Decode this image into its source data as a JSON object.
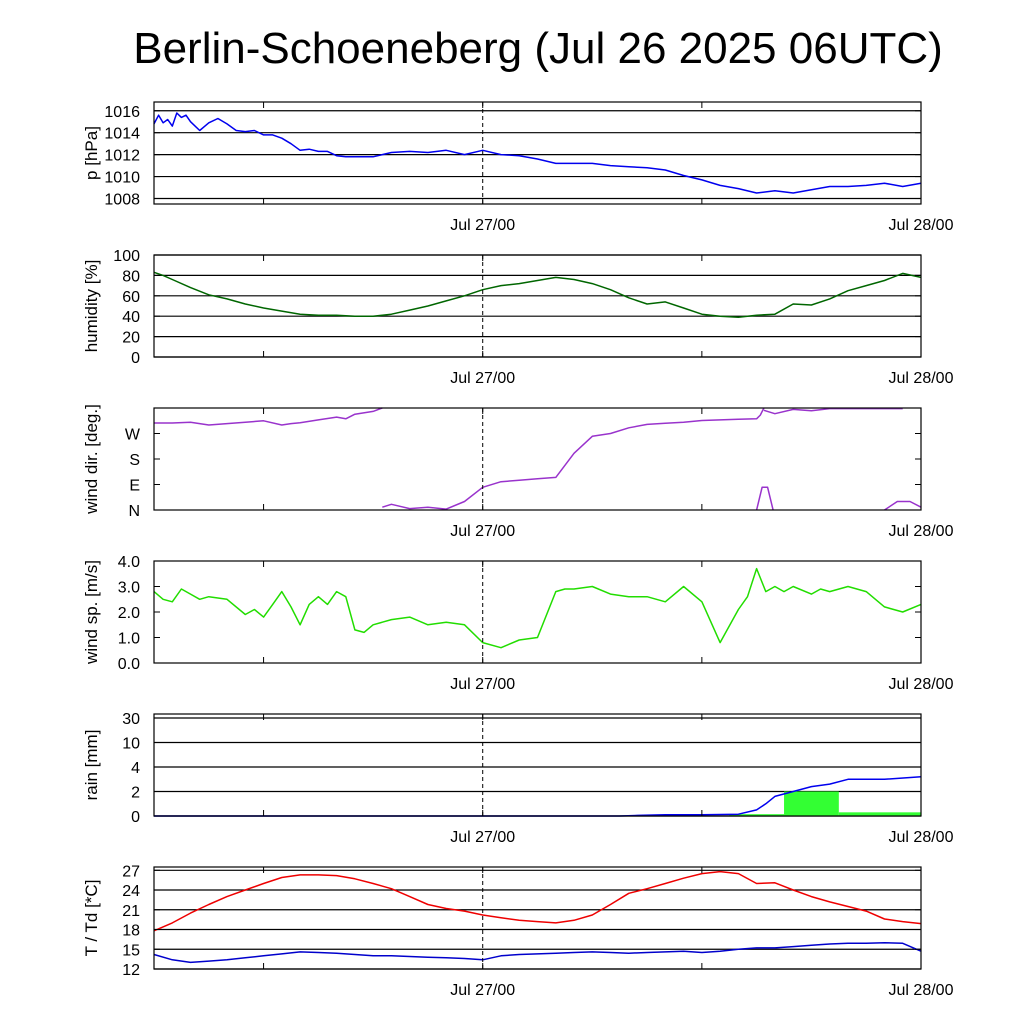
{
  "title": "Berlin-Schoeneberg (Jul 26 2025 06UTC)",
  "x_tick_labels": [
    "Jul 27/00",
    "Jul 28/00"
  ],
  "x_range_hours": [
    0,
    42
  ],
  "x_major_ticks_hours": [
    18,
    42
  ],
  "x_minor_ticks_hours": [
    6,
    30
  ],
  "chart_data": [
    {
      "type": "line",
      "ylabel": "p [hPa]",
      "ylim": [
        1007.5,
        1016.8
      ],
      "yticks": [
        1008,
        1010,
        1012,
        1014,
        1016
      ],
      "ytick_labels": [
        "1008",
        "1010",
        "1012",
        "1014",
        "1016"
      ],
      "grid": true,
      "series": [
        {
          "color": "#0000ee",
          "x": [
            0,
            0.25,
            0.5,
            0.75,
            1.0,
            1.25,
            1.5,
            1.75,
            2.0,
            2.5,
            3.0,
            3.5,
            4.0,
            4.5,
            5.0,
            5.5,
            6.0,
            6.5,
            7.0,
            7.5,
            8.0,
            8.5,
            9.0,
            9.5,
            10.0,
            10.5,
            11.0,
            12.0,
            13.0,
            14.0,
            15.0,
            16.0,
            17.0,
            18.0,
            19.0,
            20.0,
            21.0,
            22.0,
            23.0,
            24.0,
            25.0,
            26.0,
            27.0,
            28.0,
            29.0,
            30.0,
            31.0,
            32.0,
            33.0,
            34.0,
            35.0,
            36.0,
            37.0,
            38.0,
            39.0,
            40.0,
            41.0,
            42.0
          ],
          "y": [
            1014.8,
            1015.6,
            1014.9,
            1015.2,
            1014.6,
            1015.8,
            1015.4,
            1015.6,
            1015.0,
            1014.2,
            1014.9,
            1015.3,
            1014.8,
            1014.2,
            1014.1,
            1014.2,
            1013.8,
            1013.8,
            1013.5,
            1013.0,
            1012.4,
            1012.5,
            1012.3,
            1012.3,
            1011.9,
            1011.8,
            1011.8,
            1011.8,
            1012.2,
            1012.3,
            1012.2,
            1012.4,
            1012.0,
            1012.4,
            1012.0,
            1011.9,
            1011.6,
            1011.2,
            1011.2,
            1011.2,
            1011.0,
            1010.9,
            1010.8,
            1010.6,
            1010.1,
            1009.7,
            1009.2,
            1008.9,
            1008.5,
            1008.7,
            1008.5,
            1008.8,
            1009.1,
            1009.1,
            1009.2,
            1009.4,
            1009.1,
            1009.4
          ]
        }
      ]
    },
    {
      "type": "line",
      "ylabel": "humidity [%]",
      "ylim": [
        0,
        100
      ],
      "yticks": [
        0,
        20,
        40,
        60,
        80,
        100
      ],
      "ytick_labels": [
        "0",
        "20",
        "40",
        "60",
        "80",
        "100"
      ],
      "grid": true,
      "series": [
        {
          "color": "#006600",
          "x": [
            0,
            0.5,
            1,
            2,
            3,
            4,
            5,
            6,
            7,
            8,
            9,
            10,
            11,
            12,
            13,
            14,
            15,
            16,
            17,
            18,
            19,
            20,
            21,
            22,
            23,
            24,
            25,
            26,
            27,
            28,
            29,
            30,
            31,
            32,
            33,
            34,
            35,
            36,
            37,
            38,
            39,
            40,
            41,
            42
          ],
          "y": [
            83,
            80,
            76,
            68,
            61,
            57,
            52,
            48,
            45,
            42,
            41,
            41,
            40,
            40,
            42,
            46,
            50,
            55,
            60,
            66,
            70,
            72,
            75,
            78,
            76,
            72,
            66,
            58,
            52,
            54,
            48,
            42,
            40,
            39,
            41,
            42,
            52,
            51,
            57,
            65,
            70,
            75,
            82,
            78
          ]
        }
      ]
    },
    {
      "type": "scatter",
      "ylabel": "wind dir. [deg.]",
      "ylim": [
        0,
        360
      ],
      "yticks": [
        0,
        90,
        180,
        270
      ],
      "ytick_labels": [
        "N",
        "E",
        "S",
        "W"
      ],
      "grid": false,
      "series": [
        {
          "color": "#9933cc",
          "segments": [
            {
              "x": [
                0,
                1,
                2,
                3,
                4,
                5,
                6,
                7,
                7.5,
                8,
                9,
                10,
                10.5,
                11,
                12,
                12.5
              ],
              "y": [
                307,
                307,
                310,
                300,
                305,
                310,
                315,
                300,
                305,
                308,
                318,
                328,
                322,
                338,
                348,
                360
              ]
            },
            {
              "x": [
                12.5,
                13,
                14,
                15,
                16,
                17,
                18,
                19,
                20,
                21,
                22,
                23,
                24,
                25,
                26,
                27,
                28,
                29,
                30,
                31,
                32,
                33,
                33.2,
                33.4
              ],
              "y": [
                10,
                20,
                5,
                10,
                3,
                30,
                80,
                100,
                105,
                110,
                115,
                200,
                260,
                270,
                290,
                302,
                306,
                310,
                316,
                318,
                320,
                322,
                335,
                360
              ]
            },
            {
              "x": [
                33.4,
                34,
                35,
                36,
                37,
                38,
                39,
                40,
                41
              ],
              "y": [
                352,
                340,
                355,
                350,
                358,
                358,
                358,
                358,
                358
              ]
            },
            {
              "x": [
                33,
                33.3,
                33.6,
                33.9
              ],
              "y": [
                0,
                80,
                80,
                0
              ]
            },
            {
              "x": [
                40,
                40.7,
                41.4,
                42
              ],
              "y": [
                0,
                30,
                30,
                10
              ]
            }
          ]
        }
      ]
    },
    {
      "type": "line",
      "ylabel": "wind sp. [m/s]",
      "ylim": [
        0,
        4
      ],
      "yticks": [
        0,
        1,
        2,
        3,
        4
      ],
      "ytick_labels": [
        "0.0",
        "1.0",
        "2.0",
        "3.0",
        "4.0"
      ],
      "grid": false,
      "series": [
        {
          "color": "#22dd00",
          "x": [
            0,
            0.5,
            1,
            1.5,
            2,
            2.5,
            3,
            4,
            5,
            5.5,
            6,
            6.5,
            7,
            7.5,
            8,
            8.5,
            9,
            9.5,
            10,
            10.5,
            11,
            11.5,
            12,
            12.5,
            13,
            14,
            15,
            16,
            17,
            18,
            19,
            20,
            21,
            22,
            22.5,
            23,
            24,
            25,
            26,
            27,
            28,
            29,
            30,
            31,
            32,
            32.5,
            33,
            33.5,
            34,
            34.5,
            35,
            36,
            36.5,
            37,
            38,
            39,
            40,
            41,
            42
          ],
          "y": [
            2.8,
            2.5,
            2.4,
            2.9,
            2.7,
            2.5,
            2.6,
            2.5,
            1.9,
            2.1,
            1.8,
            2.3,
            2.8,
            2.2,
            1.5,
            2.3,
            2.6,
            2.3,
            2.8,
            2.6,
            1.3,
            1.2,
            1.5,
            1.6,
            1.7,
            1.8,
            1.5,
            1.6,
            1.5,
            0.8,
            0.6,
            0.9,
            1.0,
            2.8,
            2.9,
            2.9,
            3.0,
            2.7,
            2.6,
            2.6,
            2.4,
            3.0,
            2.4,
            0.8,
            2.1,
            2.6,
            3.7,
            2.8,
            3.0,
            2.8,
            3.0,
            2.7,
            2.9,
            2.8,
            3.0,
            2.8,
            2.2,
            2.0,
            2.3
          ]
        }
      ]
    },
    {
      "type": "bar",
      "ylabel": "rain [mm]",
      "ylim": [
        0,
        30
      ],
      "yticks": [
        0,
        2,
        4,
        10,
        30
      ],
      "ytick_labels": [
        "0",
        "2",
        "4",
        "10",
        "30"
      ],
      "scale": "nonlinear",
      "grid": true,
      "bars": [
        {
          "x0": 25.5,
          "x1": 28.5,
          "value": 0.05,
          "color": "#33ff33"
        },
        {
          "x0": 31.5,
          "x1": 34.5,
          "value": 0.15,
          "color": "#33ff33"
        },
        {
          "x0": 34.5,
          "x1": 37.5,
          "value": 2.0,
          "color": "#33ff33"
        },
        {
          "x0": 37.5,
          "x1": 42,
          "value": 0.3,
          "color": "#33ff33"
        }
      ],
      "series": [
        {
          "color": "#0000ee",
          "x": [
            0,
            25.5,
            26.5,
            28,
            30,
            32,
            33,
            33.5,
            34,
            35,
            36,
            37,
            38,
            40,
            42
          ],
          "y": [
            0,
            0,
            0.05,
            0.1,
            0.1,
            0.15,
            0.5,
            1.0,
            1.6,
            2.0,
            2.4,
            2.6,
            3.0,
            3.0,
            3.2
          ]
        }
      ]
    },
    {
      "type": "line",
      "ylabel": "T / Td [*C]",
      "ylim": [
        12,
        27.5
      ],
      "yticks": [
        12,
        15,
        18,
        21,
        24,
        27
      ],
      "ytick_labels": [
        "12",
        "15",
        "18",
        "21",
        "24",
        "27"
      ],
      "grid": true,
      "series": [
        {
          "color": "#ee0000",
          "x": [
            0,
            1,
            2,
            3,
            4,
            5,
            6,
            7,
            8,
            9,
            10,
            11,
            12,
            13,
            14,
            15,
            16,
            17,
            18,
            19,
            20,
            21,
            22,
            23,
            24,
            25,
            26,
            27,
            28,
            29,
            30,
            31,
            32,
            33,
            34,
            35,
            36,
            37,
            38,
            39,
            40,
            41,
            42
          ],
          "y": [
            17.8,
            19.0,
            20.5,
            21.8,
            23.0,
            24.0,
            25.0,
            25.9,
            26.3,
            26.3,
            26.2,
            25.7,
            25.0,
            24.2,
            23.0,
            21.8,
            21.2,
            20.8,
            20.2,
            19.8,
            19.4,
            19.2,
            19.0,
            19.4,
            20.2,
            21.8,
            23.5,
            24.2,
            25.0,
            25.8,
            26.5,
            26.8,
            26.5,
            25.0,
            25.1,
            24.0,
            23.0,
            22.2,
            21.5,
            20.8,
            19.6,
            19.2,
            18.9
          ]
        },
        {
          "color": "#0000cc",
          "x": [
            0,
            1,
            2,
            3,
            4,
            5,
            6,
            7,
            8,
            9,
            10,
            11,
            12,
            13,
            14,
            15,
            16,
            17,
            18,
            19,
            20,
            21,
            22,
            23,
            24,
            25,
            26,
            27,
            28,
            29,
            30,
            31,
            32,
            33,
            34,
            35,
            36,
            37,
            38,
            39,
            40,
            41,
            42
          ],
          "y": [
            14.2,
            13.4,
            13.0,
            13.2,
            13.4,
            13.7,
            14.0,
            14.3,
            14.6,
            14.5,
            14.4,
            14.2,
            14.0,
            14.0,
            13.9,
            13.8,
            13.7,
            13.6,
            13.4,
            14.0,
            14.2,
            14.3,
            14.4,
            14.5,
            14.6,
            14.5,
            14.4,
            14.5,
            14.6,
            14.7,
            14.5,
            14.7,
            15.0,
            15.2,
            15.2,
            15.4,
            15.6,
            15.8,
            15.9,
            15.9,
            16.0,
            15.9,
            14.7
          ]
        }
      ]
    }
  ]
}
